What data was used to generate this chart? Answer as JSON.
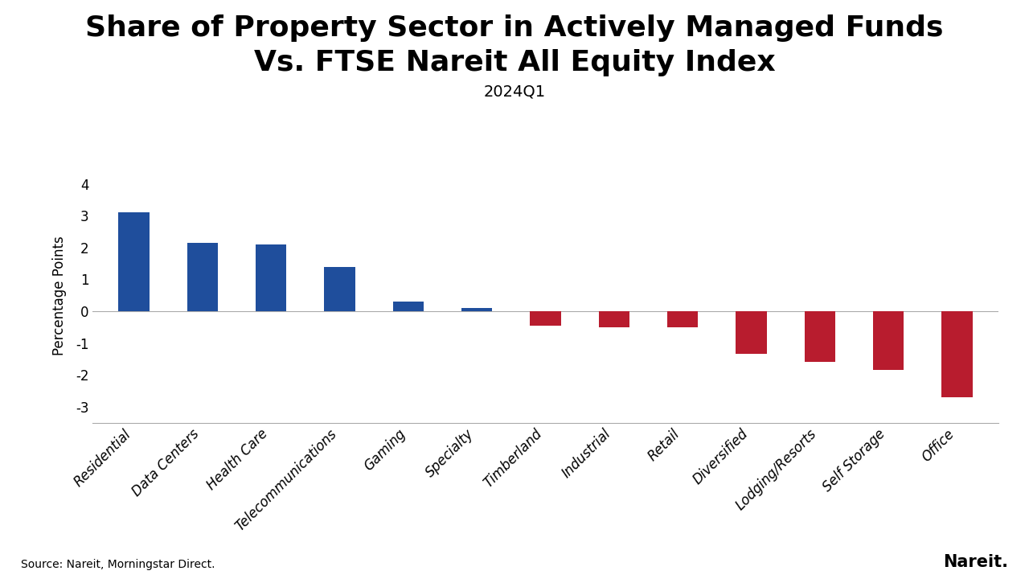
{
  "title_line1": "Share of Property Sector in Actively Managed Funds",
  "title_line2": "Vs. FTSE Nareit All Equity Index",
  "subtitle": "2024Q1",
  "ylabel": "Percentage Points",
  "categories": [
    "Residential",
    "Data Centers",
    "Health Care",
    "Telecommunications",
    "Gaming",
    "Specialty",
    "Timberland",
    "Industrial",
    "Retail",
    "Diversified",
    "Lodging/Resorts",
    "Self Storage",
    "Office"
  ],
  "values": [
    3.1,
    2.15,
    2.1,
    1.4,
    0.3,
    0.1,
    -0.45,
    -0.5,
    -0.5,
    -1.35,
    -1.6,
    -1.85,
    -2.7
  ],
  "bar_colors_positive": "#1f4e9c",
  "bar_colors_negative": "#b81c2e",
  "ylim": [
    -3.5,
    4.5
  ],
  "yticks": [
    -3,
    -2,
    -1,
    0,
    1,
    2,
    3,
    4
  ],
  "background_color": "#ffffff",
  "source_text": "Source: Nareit, Morningstar Direct.",
  "nareit_text": "Nareit.",
  "title_fontsize": 26,
  "subtitle_fontsize": 14,
  "ylabel_fontsize": 12,
  "tick_fontsize": 12,
  "source_fontsize": 10,
  "nareit_fontsize": 15
}
